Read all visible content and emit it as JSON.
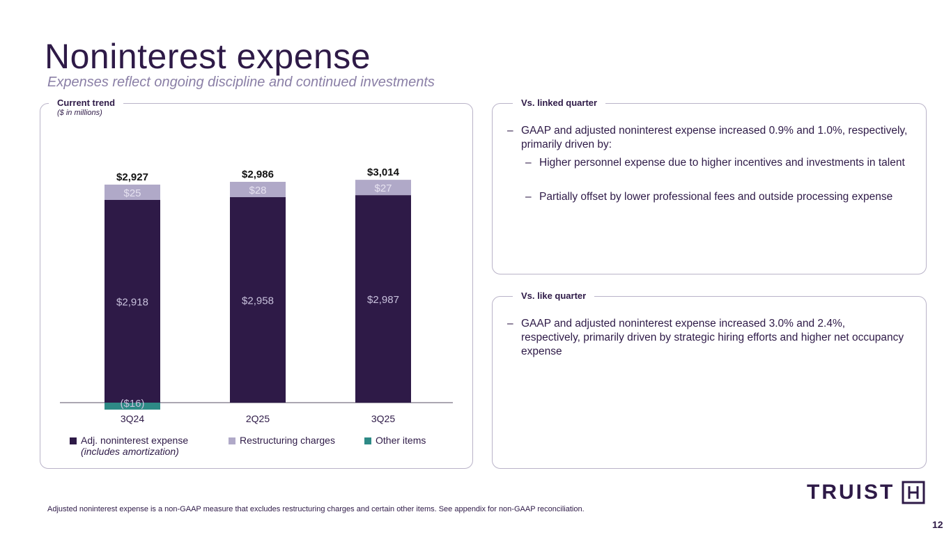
{
  "title": "Noninterest expense",
  "subtitle": "Expenses reflect ongoing discipline and continued investments",
  "left_panel": {
    "title": "Current trend",
    "subtitle": "($ in millions)"
  },
  "linked": {
    "title": "Vs. linked quarter",
    "bullet": "GAAP and adjusted noninterest expense increased 0.9% and 1.0%, respectively, primarily driven by:",
    "sub": [
      "Higher personnel expense due to higher incentives and investments in talent",
      "Partially offset by lower professional fees and outside processing expense"
    ]
  },
  "like": {
    "title": "Vs. like quarter",
    "bullet": "GAAP and adjusted noninterest expense increased 3.0% and 2.4%, respectively, primarily driven by strategic hiring efforts and higher net occupancy expense"
  },
  "dash": "–",
  "chart_data": {
    "type": "bar",
    "stacked": true,
    "categories": [
      "3Q24",
      "2Q25",
      "3Q25"
    ],
    "series": [
      {
        "name": "Adj. noninterest expense",
        "name2": "(includes amortization)",
        "color": "#2e1a47",
        "values": [
          2918,
          2958,
          2987
        ],
        "labels": [
          "$2,918",
          "$2,958",
          "$2,987"
        ]
      },
      {
        "name": "Restructuring charges",
        "color": "#b0a9c8",
        "values": [
          25,
          28,
          27
        ],
        "labels": [
          "$25",
          "$28",
          "$27"
        ]
      },
      {
        "name": "Other items",
        "color": "#2e8a86",
        "values": [
          -16,
          0,
          0
        ],
        "labels": [
          "($16)",
          "",
          ""
        ]
      }
    ],
    "totals": [
      2927,
      2986,
      3014
    ],
    "total_labels": [
      "$2,927",
      "$2,986",
      "$3,014"
    ],
    "units": "$ in millions"
  },
  "footnote": "Adjusted noninterest expense is a non-GAAP measure that excludes restructuring charges and certain other items. See appendix for non-GAAP reconciliation.",
  "logo": "TRUIST",
  "page_number": "12"
}
